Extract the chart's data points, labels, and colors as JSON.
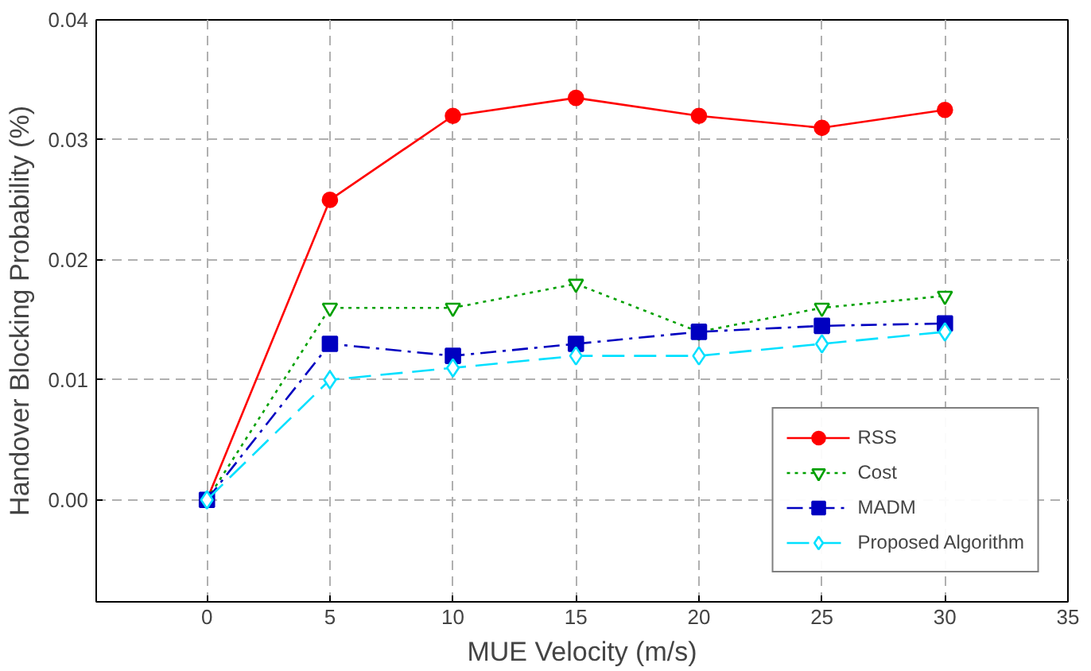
{
  "chart_data": {
    "type": "line",
    "xlabel": "MUE Velocity (m/s)",
    "ylabel": "Handover Blocking Probability (%)",
    "x": [
      0,
      5,
      10,
      15,
      20,
      25,
      30
    ],
    "series": [
      {
        "name": "RSS",
        "color": "#ff0000",
        "marker": "circle",
        "line_style": "solid",
        "values": [
          0,
          0.025,
          0.032,
          0.0335,
          0.032,
          0.031,
          0.0325
        ]
      },
      {
        "name": "Cost",
        "color": "#00a000",
        "marker": "triangle",
        "line_style": "dotted",
        "values": [
          0,
          0.016,
          0.016,
          0.018,
          0.014,
          0.016,
          0.017
        ]
      },
      {
        "name": "MADM",
        "color": "#0000c0",
        "marker": "square",
        "line_style": "dashed",
        "values": [
          0,
          0.013,
          0.012,
          0.013,
          0.014,
          0.0145,
          0.0147
        ]
      },
      {
        "name": "Proposed Algorithm",
        "color": "#00e0ff",
        "marker": "diamond",
        "line_style": "dashed",
        "values": [
          0,
          0.01,
          0.011,
          0.012,
          0.012,
          0.013,
          0.014
        ]
      }
    ],
    "xlim": [
      -4.5,
      35
    ],
    "ylim": [
      -0.0085,
      0.04
    ],
    "xticks": [
      0,
      5,
      10,
      15,
      20,
      25,
      30,
      35
    ],
    "yticks": [
      {
        "value": 0,
        "label": "0.00"
      },
      {
        "value": 0.01,
        "label": "0.01"
      },
      {
        "value": 0.02,
        "label": "0.02"
      },
      {
        "value": 0.03,
        "label": "0.03"
      },
      {
        "value": 0.04,
        "label": "0.04"
      }
    ],
    "grid": true,
    "legend": "bottom right"
  }
}
